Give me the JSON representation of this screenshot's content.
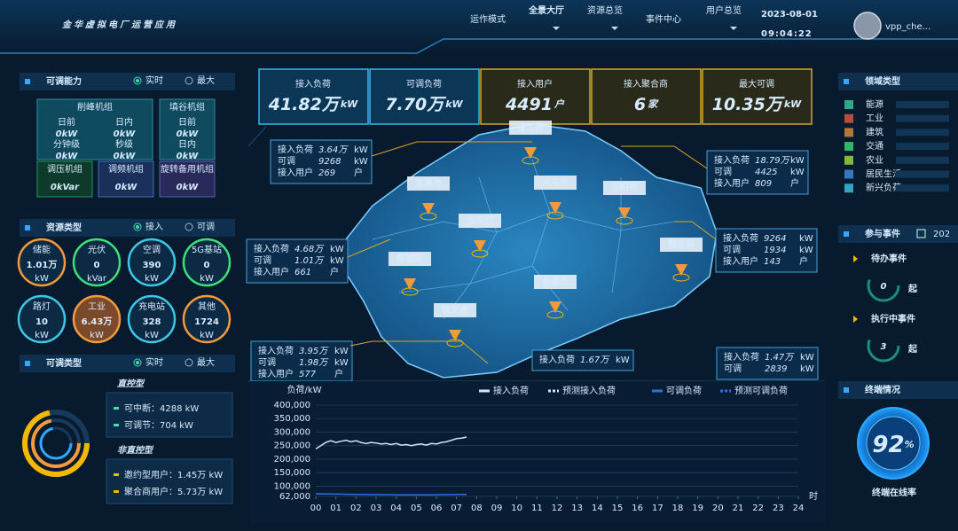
{
  "header": {
    "title": "金华虚拟电厂运营应用",
    "nav": [
      "运作模式",
      "全景大厅",
      "资源总览",
      "事件中心",
      "用户总览"
    ],
    "date": "2023-08-01",
    "time": "09:04:22",
    "user": "vpp_che..."
  },
  "adjust_capacity": {
    "title": "可调能力",
    "modes": [
      "实时",
      "最大"
    ],
    "peak": {
      "name": "削峰机组",
      "items": [
        {
          "label": "日前",
          "value": "0kW"
        },
        {
          "label": "日内",
          "value": "0kW"
        },
        {
          "label": "分钟级",
          "value": "0kW"
        },
        {
          "label": "秒级",
          "value": "0kW"
        }
      ]
    },
    "valley": {
      "name": "填谷机组",
      "items": [
        {
          "label": "日前",
          "value": "0kW"
        },
        {
          "label": "日内",
          "value": "0kW"
        }
      ]
    },
    "units": [
      {
        "name": "调压机组",
        "value": "0kVar"
      },
      {
        "name": "调频机组",
        "value": "0kW"
      },
      {
        "name": "旋转备用机组",
        "value": "0kW"
      }
    ]
  },
  "resource_types": {
    "title": "资源类型",
    "modes": [
      "接入",
      "可调"
    ],
    "items": [
      {
        "name": "储能",
        "value": "1.01万",
        "unit": "kW"
      },
      {
        "name": "光伏",
        "value": "0",
        "unit": "kVar"
      },
      {
        "name": "空调",
        "value": "390",
        "unit": "kW"
      },
      {
        "name": "5G基站",
        "value": "0",
        "unit": "kW"
      },
      {
        "name": "路灯",
        "value": "10",
        "unit": "kW"
      },
      {
        "name": "工业",
        "value": "6.43万",
        "unit": "kW"
      },
      {
        "name": "充电站",
        "value": "328",
        "unit": "kW"
      },
      {
        "name": "其他",
        "value": "1724",
        "unit": "kW"
      }
    ]
  },
  "adjust_types": {
    "title": "可调类型",
    "modes": [
      "实时",
      "最大"
    ],
    "direct": {
      "title": "直控型",
      "items": [
        "可中断：4288 kW",
        "可调节：704 kW"
      ]
    },
    "indirect": {
      "title": "非直控型",
      "items": [
        "邀约型用户：1.45万 kW",
        "聚合商用户：5.73万 kW"
      ]
    }
  },
  "kpis": [
    {
      "label": "接入负荷",
      "value": "41.82万",
      "unit": "kW"
    },
    {
      "label": "可调负荷",
      "value": "7.70万",
      "unit": "kW"
    },
    {
      "label": "接入用户",
      "value": "4491",
      "unit": "户"
    },
    {
      "label": "接入聚合商",
      "value": "6",
      "unit": "家"
    },
    {
      "label": "最大可调",
      "value": "10.35万",
      "unit": "kW"
    }
  ],
  "map": {
    "regions": [
      "浦江县",
      "兰溪市",
      "义乌市",
      "东阳市",
      "金东区",
      "磐安县",
      "婺城区",
      "永康市",
      "武义县"
    ],
    "boxes": [
      {
        "rows": [
          {
            "label": "接入负荷",
            "value": "3.64万",
            "unit": "kW"
          },
          {
            "label": "可调",
            "value": "9268",
            "unit": "kW"
          },
          {
            "label": "接入用户",
            "value": "269",
            "unit": "户"
          }
        ]
      },
      {
        "rows": [
          {
            "label": "接入负荷",
            "value": "18.79万",
            "unit": "kW"
          },
          {
            "label": "可调",
            "value": "4425",
            "unit": "kW"
          },
          {
            "label": "接入用户",
            "value": "809",
            "unit": "户"
          }
        ]
      },
      {
        "rows": [
          {
            "label": "接入负荷",
            "value": "4.68万",
            "unit": "kW"
          },
          {
            "label": "可调",
            "value": "1.01万",
            "unit": "kW"
          },
          {
            "label": "接入用户",
            "value": "661",
            "unit": "户"
          }
        ]
      },
      {
        "rows": [
          {
            "label": "接入负荷",
            "value": "9264",
            "unit": "kW"
          },
          {
            "label": "可调",
            "value": "1934",
            "unit": "kW"
          },
          {
            "label": "接入用户",
            "value": "143",
            "unit": "户"
          }
        ]
      },
      {
        "rows": [
          {
            "label": "接入负荷",
            "value": "3.95万",
            "unit": "kW"
          },
          {
            "label": "可调",
            "value": "1.98万",
            "unit": "kW"
          },
          {
            "label": "接入用户",
            "value": "577",
            "unit": "户"
          }
        ]
      },
      {
        "rows": [
          {
            "label": "接入负荷",
            "value": "1.67万",
            "unit": "kW"
          }
        ]
      },
      {
        "rows": [
          {
            "label": "接入负荷",
            "value": "1.47万",
            "unit": "kW"
          },
          {
            "label": "可调",
            "value": "2839",
            "unit": "kW"
          }
        ]
      }
    ]
  },
  "domains": {
    "title": "领域类型",
    "items": [
      "能源",
      "工业",
      "建筑",
      "交通",
      "农业",
      "居民生活",
      "新兴负荷"
    ]
  },
  "events": {
    "title": "参与事件",
    "date": "202",
    "items": [
      {
        "label": "待办事件",
        "count": 0,
        "unit": "起"
      },
      {
        "label": "执行中事件",
        "count": 3,
        "unit": "起"
      }
    ]
  },
  "terminal": {
    "title": "终端情况",
    "value": 92,
    "unit": "%",
    "label": "终端在线率"
  },
  "chart_data": {
    "type": "line",
    "y_label": "负荷/kW",
    "x_label": "时",
    "x": [
      0,
      0.25,
      0.5,
      0.75,
      1,
      1.25,
      1.5,
      1.75,
      2,
      2.25,
      2.5,
      2.75,
      3,
      3.25,
      3.5,
      3.75,
      4,
      4.25,
      4.5,
      4.75,
      5,
      5.25,
      5.5,
      5.75,
      6,
      6.25,
      6.5,
      6.75,
      7,
      7.25,
      7.5
    ],
    "series": [
      {
        "name": "接入负荷",
        "color": "#cfe4ff",
        "dash": false,
        "values": [
          238000,
          250000,
          262000,
          268000,
          262000,
          266000,
          270000,
          264000,
          268000,
          262000,
          258000,
          262000,
          260000,
          256000,
          258000,
          254000,
          258000,
          252000,
          254000,
          250000,
          254000,
          256000,
          252000,
          258000,
          256000,
          262000,
          264000,
          270000,
          276000,
          278000,
          282000
        ]
      },
      {
        "name": "预测接入负荷",
        "color": "#cfe4ff",
        "dash": true,
        "values": [
          null,
          null,
          null,
          null,
          null,
          null,
          null,
          null,
          null,
          null,
          null,
          null,
          null,
          null,
          null,
          null,
          null,
          null,
          null,
          null,
          null,
          null,
          null,
          null,
          null,
          null,
          null,
          null,
          null,
          null,
          null
        ]
      },
      {
        "name": "可调负荷",
        "color": "#2f6fe0",
        "dash": false,
        "values": [
          72000,
          71500,
          71000,
          71000,
          70500,
          70500,
          70000,
          70000,
          69500,
          69500,
          69000,
          69000,
          69000,
          68500,
          68500,
          68500,
          68000,
          68000,
          68000,
          68000,
          67500,
          67500,
          67500,
          68000,
          68000,
          68500,
          68500,
          69000,
          69000,
          69500,
          69500
        ]
      },
      {
        "name": "预测可调负荷",
        "color": "#2f6fe0",
        "dash": true,
        "values": [
          null,
          null,
          null,
          null,
          null,
          null,
          null,
          null,
          null,
          null,
          null,
          null,
          null,
          null,
          null,
          null,
          null,
          null,
          null,
          null,
          null,
          null,
          null,
          null,
          null,
          null,
          null,
          null,
          null,
          null,
          null
        ]
      }
    ],
    "xlim": [
      0,
      24
    ],
    "xticks": [
      {
        "value": 0,
        "label": "00"
      },
      {
        "value": 1,
        "label": "01"
      },
      {
        "value": 2,
        "label": "02"
      },
      {
        "value": 3,
        "label": "03"
      },
      {
        "value": 4,
        "label": "04"
      },
      {
        "value": 5,
        "label": "05"
      },
      {
        "value": 6,
        "label": "06"
      },
      {
        "value": 7,
        "label": "07"
      },
      {
        "value": 8,
        "label": "08"
      },
      {
        "value": 9,
        "label": "09"
      },
      10,
      11,
      12,
      13,
      14,
      15,
      16,
      17,
      18,
      19,
      20,
      21,
      22,
      23,
      24
    ],
    "ylim": [
      62000,
      400000
    ],
    "yticks": [
      {
        "value": 62000,
        "label": "62,000"
      },
      {
        "value": 100000,
        "label": "100,000"
      },
      {
        "value": 150000,
        "label": "150,000"
      },
      {
        "value": 200000,
        "label": "200,000"
      },
      {
        "value": 250000,
        "label": "250,000"
      },
      {
        "value": 300000,
        "label": "300,000"
      },
      {
        "value": 350000,
        "label": "350,000"
      },
      {
        "value": 400000,
        "label": "400,000"
      }
    ],
    "grid": true
  }
}
